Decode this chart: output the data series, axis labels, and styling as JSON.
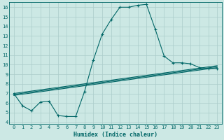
{
  "xlabel": "Humidex (Indice chaleur)",
  "bg_color": "#cce8e4",
  "grid_color": "#aaccca",
  "line_color": "#006666",
  "xlim": [
    -0.5,
    23.5
  ],
  "ylim": [
    3.8,
    16.5
  ],
  "xticks": [
    0,
    1,
    2,
    3,
    4,
    5,
    6,
    7,
    8,
    9,
    10,
    11,
    12,
    13,
    14,
    15,
    16,
    17,
    18,
    19,
    20,
    21,
    22,
    23
  ],
  "yticks": [
    4,
    5,
    6,
    7,
    8,
    9,
    10,
    11,
    12,
    13,
    14,
    15,
    16
  ],
  "curve1_x": [
    0,
    1,
    2,
    3,
    4,
    5,
    6,
    7,
    8,
    9,
    10,
    11,
    12,
    13,
    14,
    15,
    16,
    17,
    18,
    19,
    20,
    21,
    22,
    23
  ],
  "curve1_y": [
    7.0,
    5.7,
    5.2,
    6.1,
    6.2,
    4.7,
    4.6,
    4.6,
    7.2,
    10.5,
    13.2,
    14.7,
    16.0,
    16.0,
    16.2,
    16.3,
    13.7,
    10.9,
    10.2,
    10.2,
    10.1,
    9.7,
    9.6,
    9.6
  ],
  "curve2_x": [
    0,
    23
  ],
  "curve2_y": [
    6.8,
    9.7
  ],
  "curve3_x": [
    0,
    23
  ],
  "curve3_y": [
    6.9,
    9.8
  ],
  "curve4_x": [
    0,
    23
  ],
  "curve4_y": [
    7.0,
    9.9
  ]
}
